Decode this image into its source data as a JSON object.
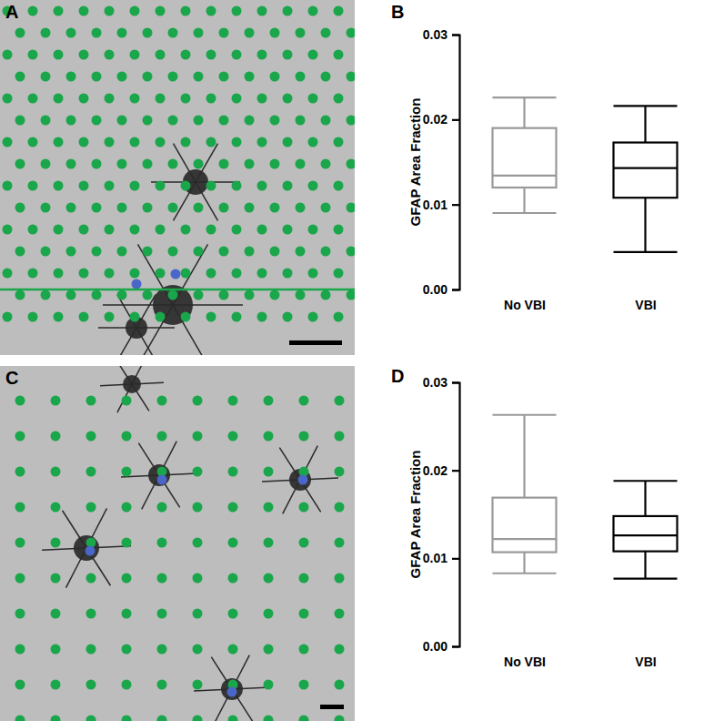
{
  "images": [
    {
      "panel_label": "A"
    },
    {
      "panel_label": "C"
    }
  ],
  "chart_data": [
    {
      "type": "box",
      "panel_label": "B",
      "ylabel": "GFAP Area Fraction",
      "categories": [
        "No VBI",
        "VBI"
      ],
      "colors": [
        "#999999",
        "#000000"
      ],
      "min": [
        0.009,
        0.0044
      ],
      "q1": [
        0.012,
        0.0108
      ],
      "median": [
        0.0134,
        0.0143
      ],
      "q3": [
        0.019,
        0.0173
      ],
      "max": [
        0.0226,
        0.0216
      ],
      "ylim": [
        0,
        0.03
      ],
      "yticks": [
        {
          "value": 0,
          "label": "0.00"
        },
        {
          "value": 0.01,
          "label": "0.01"
        },
        {
          "value": 0.02,
          "label": "0.02"
        },
        {
          "value": 0.03,
          "label": "0.03"
        }
      ]
    },
    {
      "type": "box",
      "panel_label": "D",
      "ylabel": "GFAP Area Fraction",
      "categories": [
        "No VBI",
        "VBI"
      ],
      "colors": [
        "#999999",
        "#000000"
      ],
      "min": [
        0.0083,
        0.0077
      ],
      "q1": [
        0.0107,
        0.0108
      ],
      "median": [
        0.0122,
        0.0126
      ],
      "q3": [
        0.0169,
        0.0148
      ],
      "max": [
        0.0263,
        0.0188
      ],
      "ylim": [
        0,
        0.03
      ],
      "yticks": [
        {
          "value": 0,
          "label": "0.00"
        },
        {
          "value": 0.01,
          "label": "0.01"
        },
        {
          "value": 0.02,
          "label": "0.02"
        },
        {
          "value": 0.03,
          "label": "0.03"
        }
      ]
    }
  ]
}
